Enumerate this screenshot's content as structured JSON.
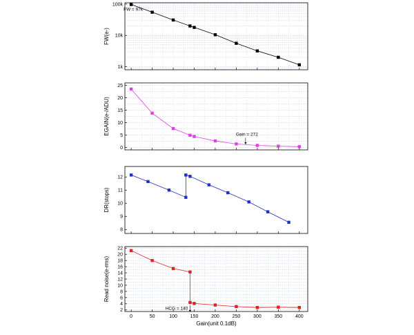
{
  "chart_data": [
    {
      "type": "line",
      "ylabel": "FW(e-)",
      "yscale": "log",
      "ylim": [
        800,
        110000
      ],
      "xlim": [
        -15,
        420
      ],
      "grid": true,
      "color": "#000000",
      "marker": "square",
      "yticks": [
        {
          "value": 1000,
          "label": "1k"
        },
        {
          "value": 10000,
          "label": "10k"
        },
        {
          "value": 100000,
          "label": "100k"
        }
      ],
      "x": [
        0,
        50,
        100,
        140,
        150,
        200,
        250,
        300,
        350,
        400
      ],
      "y": [
        97000,
        55000,
        31000,
        20000,
        18000,
        10500,
        5600,
        3200,
        2000,
        1150
      ],
      "annotations": [
        {
          "text": "FW = 97k",
          "x": 0,
          "y": 97000
        }
      ]
    },
    {
      "type": "line",
      "ylabel": "EGAIN(e-/ADU)",
      "ylim": [
        -1,
        26
      ],
      "xlim": [
        -15,
        420
      ],
      "grid": true,
      "color": "#e040e0",
      "marker": "square",
      "yticks": [
        {
          "value": 0,
          "label": "0"
        },
        {
          "value": 5,
          "label": "5"
        },
        {
          "value": 10,
          "label": "10"
        },
        {
          "value": 15,
          "label": "15"
        },
        {
          "value": 20,
          "label": "20"
        },
        {
          "value": 25,
          "label": "25"
        }
      ],
      "x": [
        0,
        50,
        100,
        140,
        150,
        200,
        250,
        300,
        350,
        400
      ],
      "y": [
        23.5,
        13.8,
        7.6,
        4.9,
        4.4,
        2.6,
        1.4,
        0.8,
        0.5,
        0.3
      ],
      "annotations": [
        {
          "text": "Gain = 272",
          "x": 272,
          "y": 1.1
        }
      ]
    },
    {
      "type": "line",
      "ylabel": "DR(stops)",
      "ylim": [
        7.7,
        12.8
      ],
      "xlim": [
        -15,
        420
      ],
      "grid": false,
      "color": "#2030c0",
      "marker": "square",
      "yticks": [
        {
          "value": 8,
          "label": "8"
        },
        {
          "value": 9,
          "label": "9"
        },
        {
          "value": 10,
          "label": "10"
        },
        {
          "value": 11,
          "label": "11"
        },
        {
          "value": 12,
          "label": "12"
        }
      ],
      "x": [
        0,
        40,
        90,
        130,
        130,
        140,
        185,
        230,
        280,
        325,
        375
      ],
      "y": [
        12.15,
        11.65,
        11.0,
        10.45,
        12.15,
        12.05,
        11.4,
        10.8,
        10.1,
        9.35,
        8.55
      ]
    },
    {
      "type": "line",
      "ylabel": "Read noise(e-rms)",
      "ylim": [
        1.5,
        22.5
      ],
      "xlim": [
        -15,
        420
      ],
      "grid": true,
      "color": "#e02020",
      "marker": "square",
      "yticks": [
        {
          "value": 2,
          "label": "2"
        },
        {
          "value": 4,
          "label": "4"
        },
        {
          "value": 6,
          "label": "6"
        },
        {
          "value": 8,
          "label": "8"
        },
        {
          "value": 10,
          "label": "10"
        },
        {
          "value": 12,
          "label": "12"
        },
        {
          "value": 14,
          "label": "14"
        },
        {
          "value": 16,
          "label": "16"
        },
        {
          "value": 18,
          "label": "18"
        },
        {
          "value": 20,
          "label": "20"
        },
        {
          "value": 22,
          "label": "22"
        }
      ],
      "xticks": [
        0,
        50,
        100,
        150,
        200,
        250,
        300,
        350,
        400
      ],
      "xlabel": "Gain(unit 0.1dB)",
      "x": [
        0,
        50,
        100,
        140,
        140,
        150,
        200,
        250,
        300,
        350,
        400
      ],
      "y": [
        21.2,
        18.0,
        15.4,
        14.3,
        4.4,
        4.1,
        3.6,
        3.1,
        2.8,
        2.9,
        2.8
      ],
      "annotations": [
        {
          "text": "HCG = 140",
          "x": 140,
          "y": 2.2
        }
      ]
    }
  ]
}
